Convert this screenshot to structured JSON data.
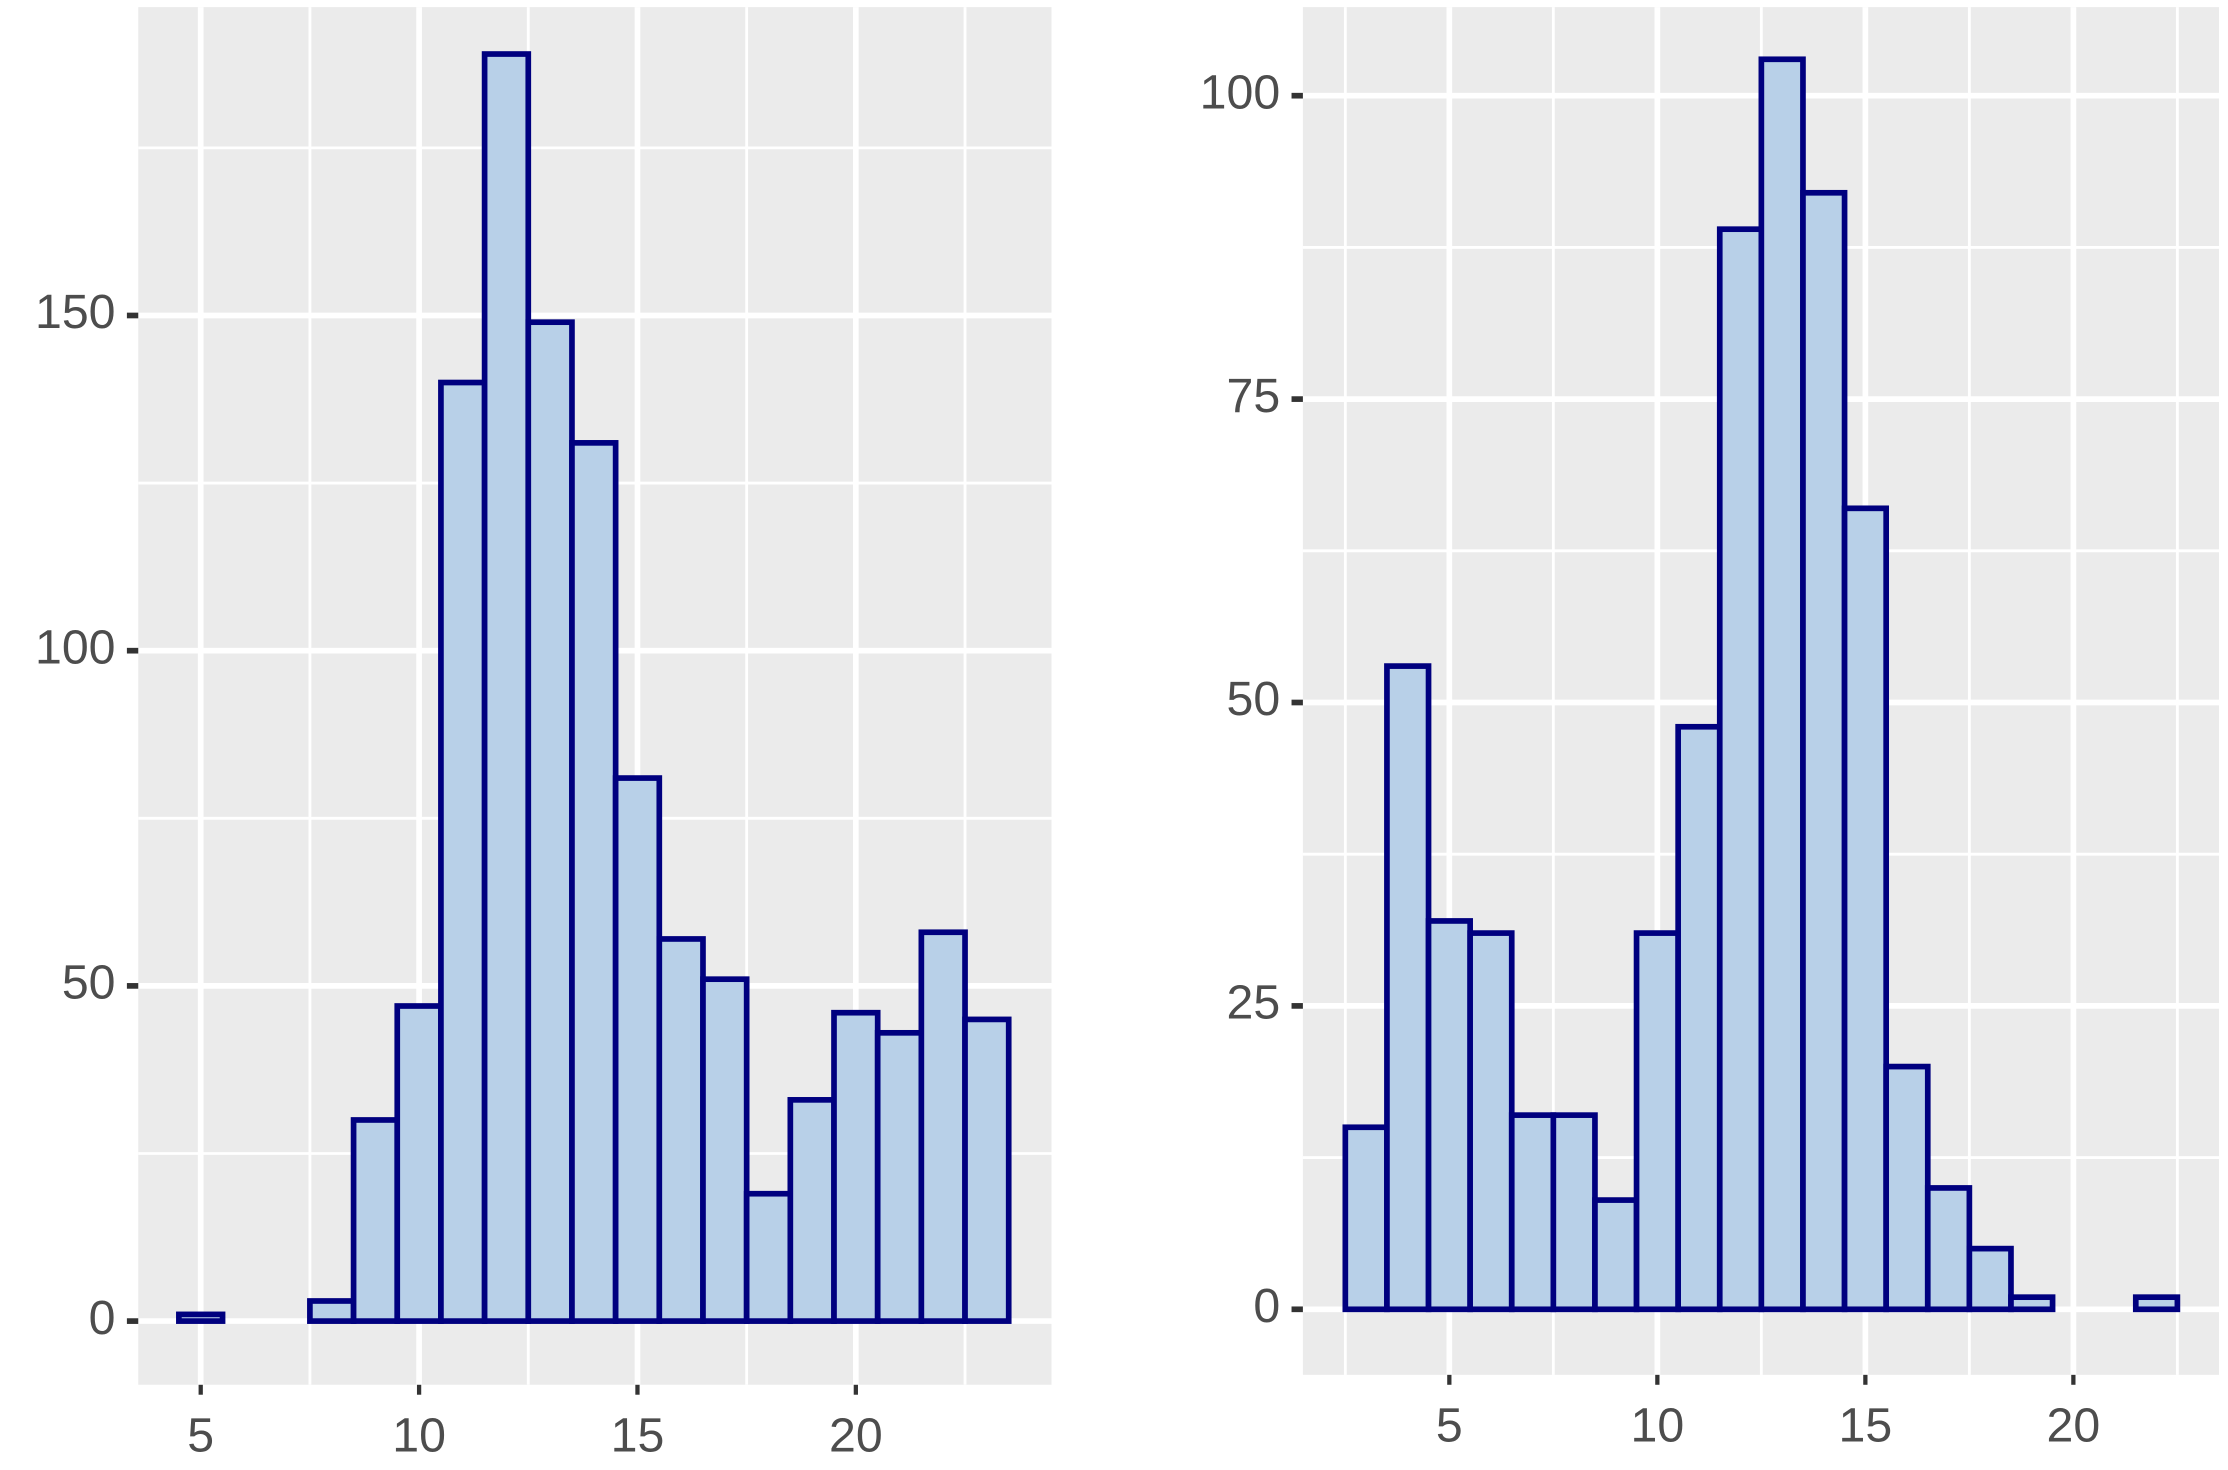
{
  "chart_data": [
    {
      "type": "histogram",
      "bins": [
        4.5,
        5.5,
        6.5,
        7.5,
        8.5,
        9.5,
        10.5,
        11.5,
        12.5,
        13.5,
        14.5,
        15.5,
        16.5,
        17.5,
        18.5,
        19.5,
        20.5,
        21.5,
        22.5,
        23.5
      ],
      "values": [
        1,
        0,
        0,
        3,
        30,
        47,
        140,
        189,
        149,
        131,
        81,
        57,
        51,
        19,
        33,
        46,
        43,
        58,
        45
      ],
      "xlim": [
        3.57,
        24.48
      ],
      "ylim": [
        -9.5,
        196
      ],
      "xticks": [
        5,
        10,
        15,
        20
      ],
      "yticks": [
        0,
        50,
        100,
        150
      ],
      "color": "#b8d0e8",
      "edgecolor": "#00007f",
      "grid": true
    },
    {
      "type": "histogram",
      "bins": [
        2.5,
        3.5,
        4.5,
        5.5,
        6.5,
        7.5,
        8.5,
        9.5,
        10.5,
        11.5,
        12.5,
        13.5,
        14.5,
        15.5,
        16.5,
        17.5,
        18.5,
        19.5,
        20.5,
        21.5,
        22.5
      ],
      "values": [
        15,
        53,
        32,
        31,
        16,
        16,
        9,
        31,
        48,
        89,
        103,
        92,
        66,
        20,
        10,
        5,
        1,
        0,
        0,
        1
      ],
      "xlim": [
        1.48,
        23.5
      ],
      "ylim": [
        -5.4,
        107.3
      ],
      "xticks": [
        5,
        10,
        15,
        20
      ],
      "yticks": [
        0,
        25,
        50,
        75,
        100
      ],
      "color": "#b8d0e8",
      "edgecolor": "#00007f",
      "grid": true
    }
  ]
}
